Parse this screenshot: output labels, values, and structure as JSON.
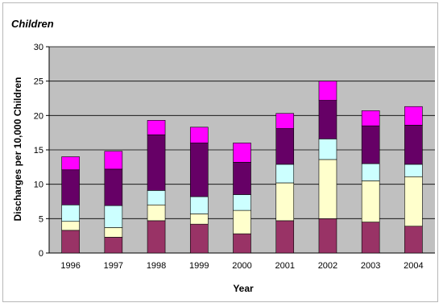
{
  "chart_data": {
    "type": "bar",
    "stacked": true,
    "title": "Children",
    "xlabel": "Year",
    "ylabel": "Discharges per 10,000 Children",
    "ylim": [
      0,
      30
    ],
    "yticks": [
      0,
      5,
      10,
      15,
      20,
      25,
      30
    ],
    "grid": true,
    "legend": "none",
    "categories": [
      "1996",
      "1997",
      "1998",
      "1999",
      "2000",
      "2001",
      "2002",
      "2003",
      "2004"
    ],
    "series": [
      {
        "color": "#993366",
        "values": [
          3.3,
          2.3,
          4.7,
          4.2,
          2.8,
          4.7,
          5.0,
          4.5,
          3.9
        ]
      },
      {
        "color": "#ffffcc",
        "values": [
          1.3,
          1.4,
          2.3,
          1.5,
          3.4,
          5.5,
          8.6,
          6.0,
          7.2
        ]
      },
      {
        "color": "#ccffff",
        "values": [
          2.4,
          3.2,
          2.1,
          2.5,
          2.3,
          2.7,
          3.0,
          2.5,
          1.8
        ]
      },
      {
        "color": "#660066",
        "values": [
          5.1,
          5.3,
          8.1,
          7.8,
          4.7,
          5.2,
          5.6,
          5.5,
          5.7
        ]
      },
      {
        "color": "#ff00ff",
        "values": [
          1.9,
          2.6,
          2.1,
          2.3,
          2.8,
          2.2,
          2.8,
          2.2,
          2.7
        ]
      }
    ]
  },
  "colors": {
    "plot_bg": "#c0c0c0",
    "gridline": "#000000",
    "bar_outline": "#000000"
  }
}
